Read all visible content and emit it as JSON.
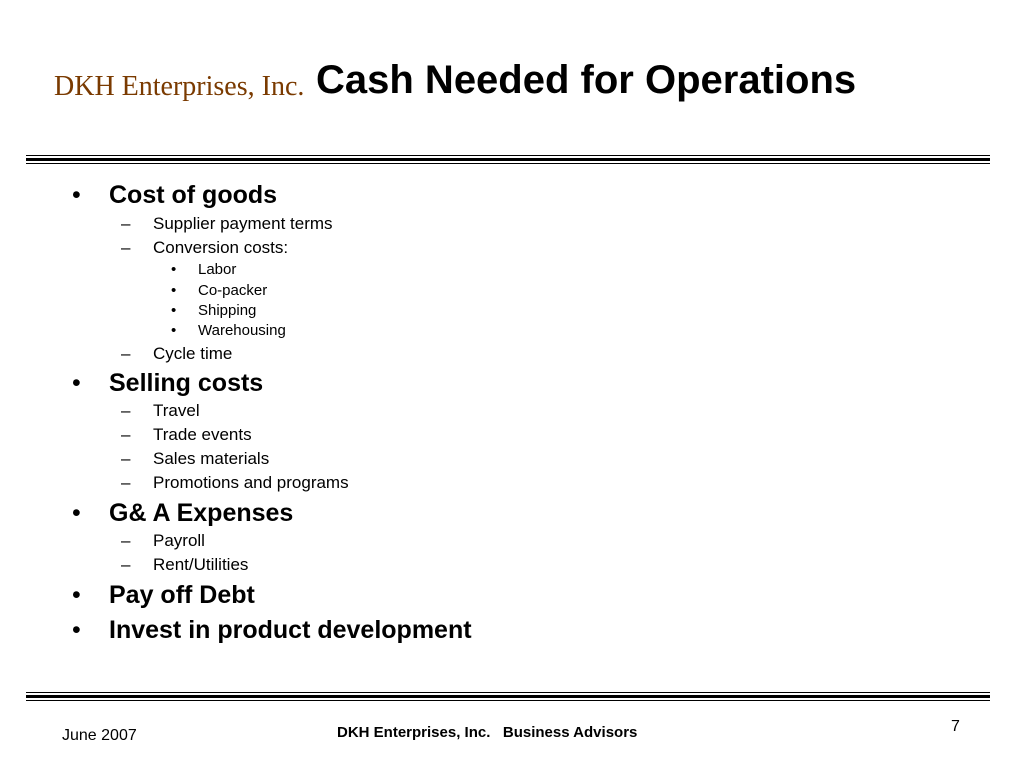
{
  "header": {
    "company": "DKH Enterprises, Inc.",
    "title": "Cash Needed for Operations"
  },
  "bullets": [
    {
      "label": "Cost of goods",
      "children": [
        {
          "label": "Supplier payment terms"
        },
        {
          "label": "Conversion costs:",
          "children": [
            "Labor",
            "Co-packer",
            "Shipping",
            "Warehousing"
          ]
        },
        {
          "label": "Cycle time"
        }
      ]
    },
    {
      "label": "Selling costs",
      "children": [
        {
          "label": "Travel"
        },
        {
          "label": "Trade events"
        },
        {
          "label": "Sales materials"
        },
        {
          "label": "Promotions and programs"
        }
      ]
    },
    {
      "label": "G& A Expenses",
      "children": [
        {
          "label": "Payroll"
        },
        {
          "label": "Rent/Utilities"
        }
      ]
    },
    {
      "label": "Pay off Debt"
    },
    {
      "label": "Invest in product development"
    }
  ],
  "markers": {
    "level1": "•",
    "level2": "–",
    "level3": "•"
  },
  "footer": {
    "date": "June 2007",
    "center": "DKH Enterprises, Inc.   Business Advisors",
    "page_number": "7"
  },
  "colors": {
    "company": "#7a3a00",
    "text": "#000000",
    "background": "#ffffff"
  }
}
